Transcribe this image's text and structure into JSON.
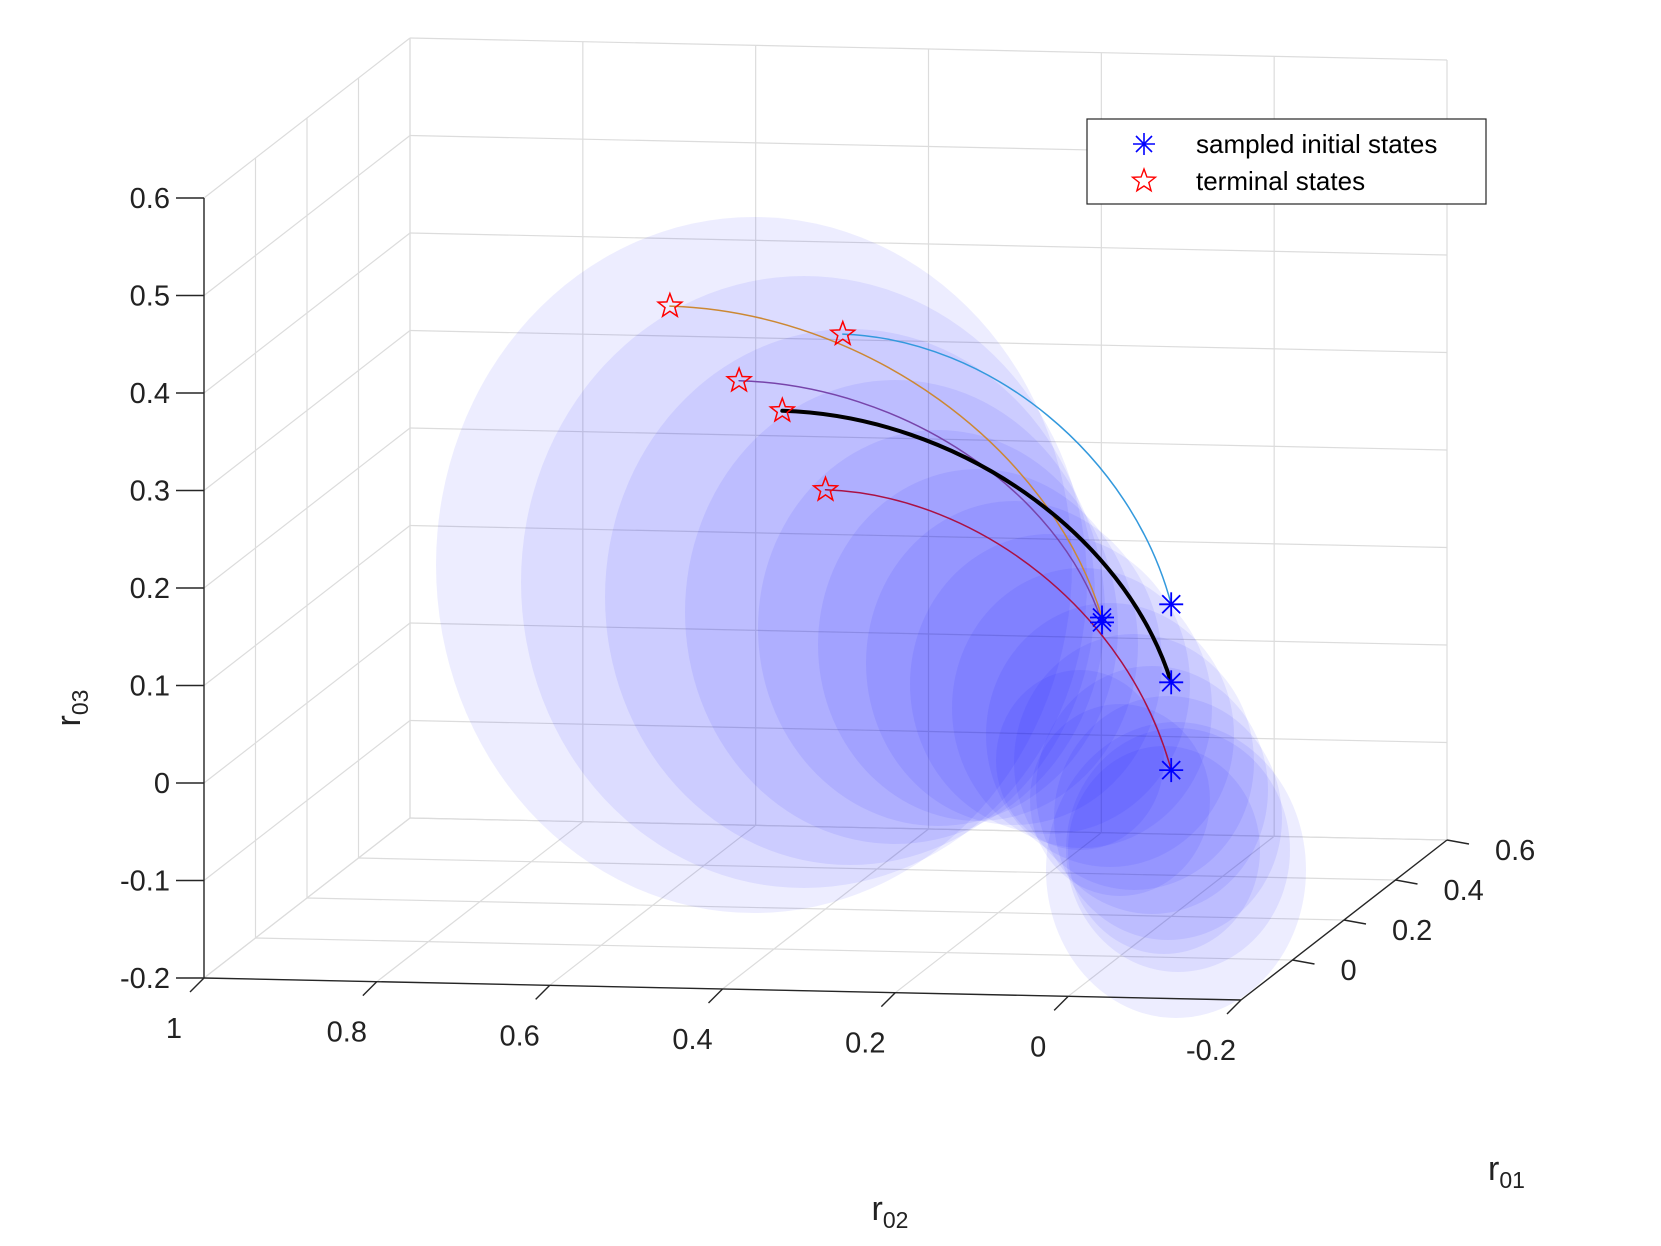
{
  "chart_data": {
    "type": "scatter3d",
    "title": "",
    "axes": {
      "x": {
        "name": "r",
        "sub": "01",
        "range": [
          -0.2,
          0.6
        ],
        "ticks": [
          0,
          0.2,
          0.4,
          0.6
        ],
        "tick_labels": [
          "0",
          "0.2",
          "0.4",
          "0.6"
        ]
      },
      "y": {
        "name": "r",
        "sub": "02",
        "range": [
          -0.2,
          1
        ],
        "ticks": [
          1,
          0.8,
          0.6,
          0.4,
          0.2,
          0,
          -0.2
        ],
        "tick_labels": [
          "1",
          "0.8",
          "0.6",
          "0.4",
          "0.2",
          "0",
          "-0.2"
        ]
      },
      "z": {
        "name": "r",
        "sub": "03",
        "range": [
          -0.2,
          0.6
        ],
        "ticks": [
          0.6,
          0.5,
          0.4,
          0.3,
          0.2,
          0.1,
          0,
          -0.1,
          -0.2
        ],
        "tick_labels": [
          "0.6",
          "0.5",
          "0.4",
          "0.3",
          "0.2",
          "0.1",
          "0",
          "-0.1",
          "-0.2"
        ]
      }
    },
    "grid": true,
    "legend": {
      "position": "top-right",
      "entries": [
        {
          "label": "sampled initial states",
          "marker": "asterisk",
          "color": "#0000ff"
        },
        {
          "label": "terminal states",
          "marker": "pentagram",
          "color": "#ff0000"
        }
      ]
    },
    "trajectories": [
      {
        "name": "trajectory-1",
        "color": "#3399dd",
        "width": 1.5,
        "initial": {
          "r02": 0.0,
          "r03": 0.12
        },
        "terminal": {
          "r02": 0.38,
          "r03": 0.39
        }
      },
      {
        "name": "trajectory-2",
        "color": "#cc8833",
        "width": 1.5,
        "initial": {
          "r02": 0.08,
          "r03": 0.105
        },
        "terminal": {
          "r02": 0.58,
          "r03": 0.415
        }
      },
      {
        "name": "trajectory-3",
        "color": "#7744aa",
        "width": 1.5,
        "initial": {
          "r02": 0.08,
          "r03": 0.1
        },
        "terminal": {
          "r02": 0.5,
          "r03": 0.34
        }
      },
      {
        "name": "trajectory-nominal",
        "color": "#000000",
        "width": 4,
        "initial": {
          "r02": 0.0,
          "r03": 0.04
        },
        "terminal": {
          "r02": 0.45,
          "r03": 0.31
        }
      },
      {
        "name": "trajectory-4",
        "color": "#aa1144",
        "width": 1.5,
        "initial": {
          "r02": 0.0,
          "r03": -0.05
        },
        "terminal": {
          "r02": 0.4,
          "r03": 0.23
        }
      }
    ],
    "uncertainty_ellipsoids": {
      "color": "#0000ff",
      "opacity": 0.07
    }
  },
  "colors": {
    "ellipsoid": "#0000ff",
    "grid": "#dcdcdc",
    "axis": "#262626"
  }
}
